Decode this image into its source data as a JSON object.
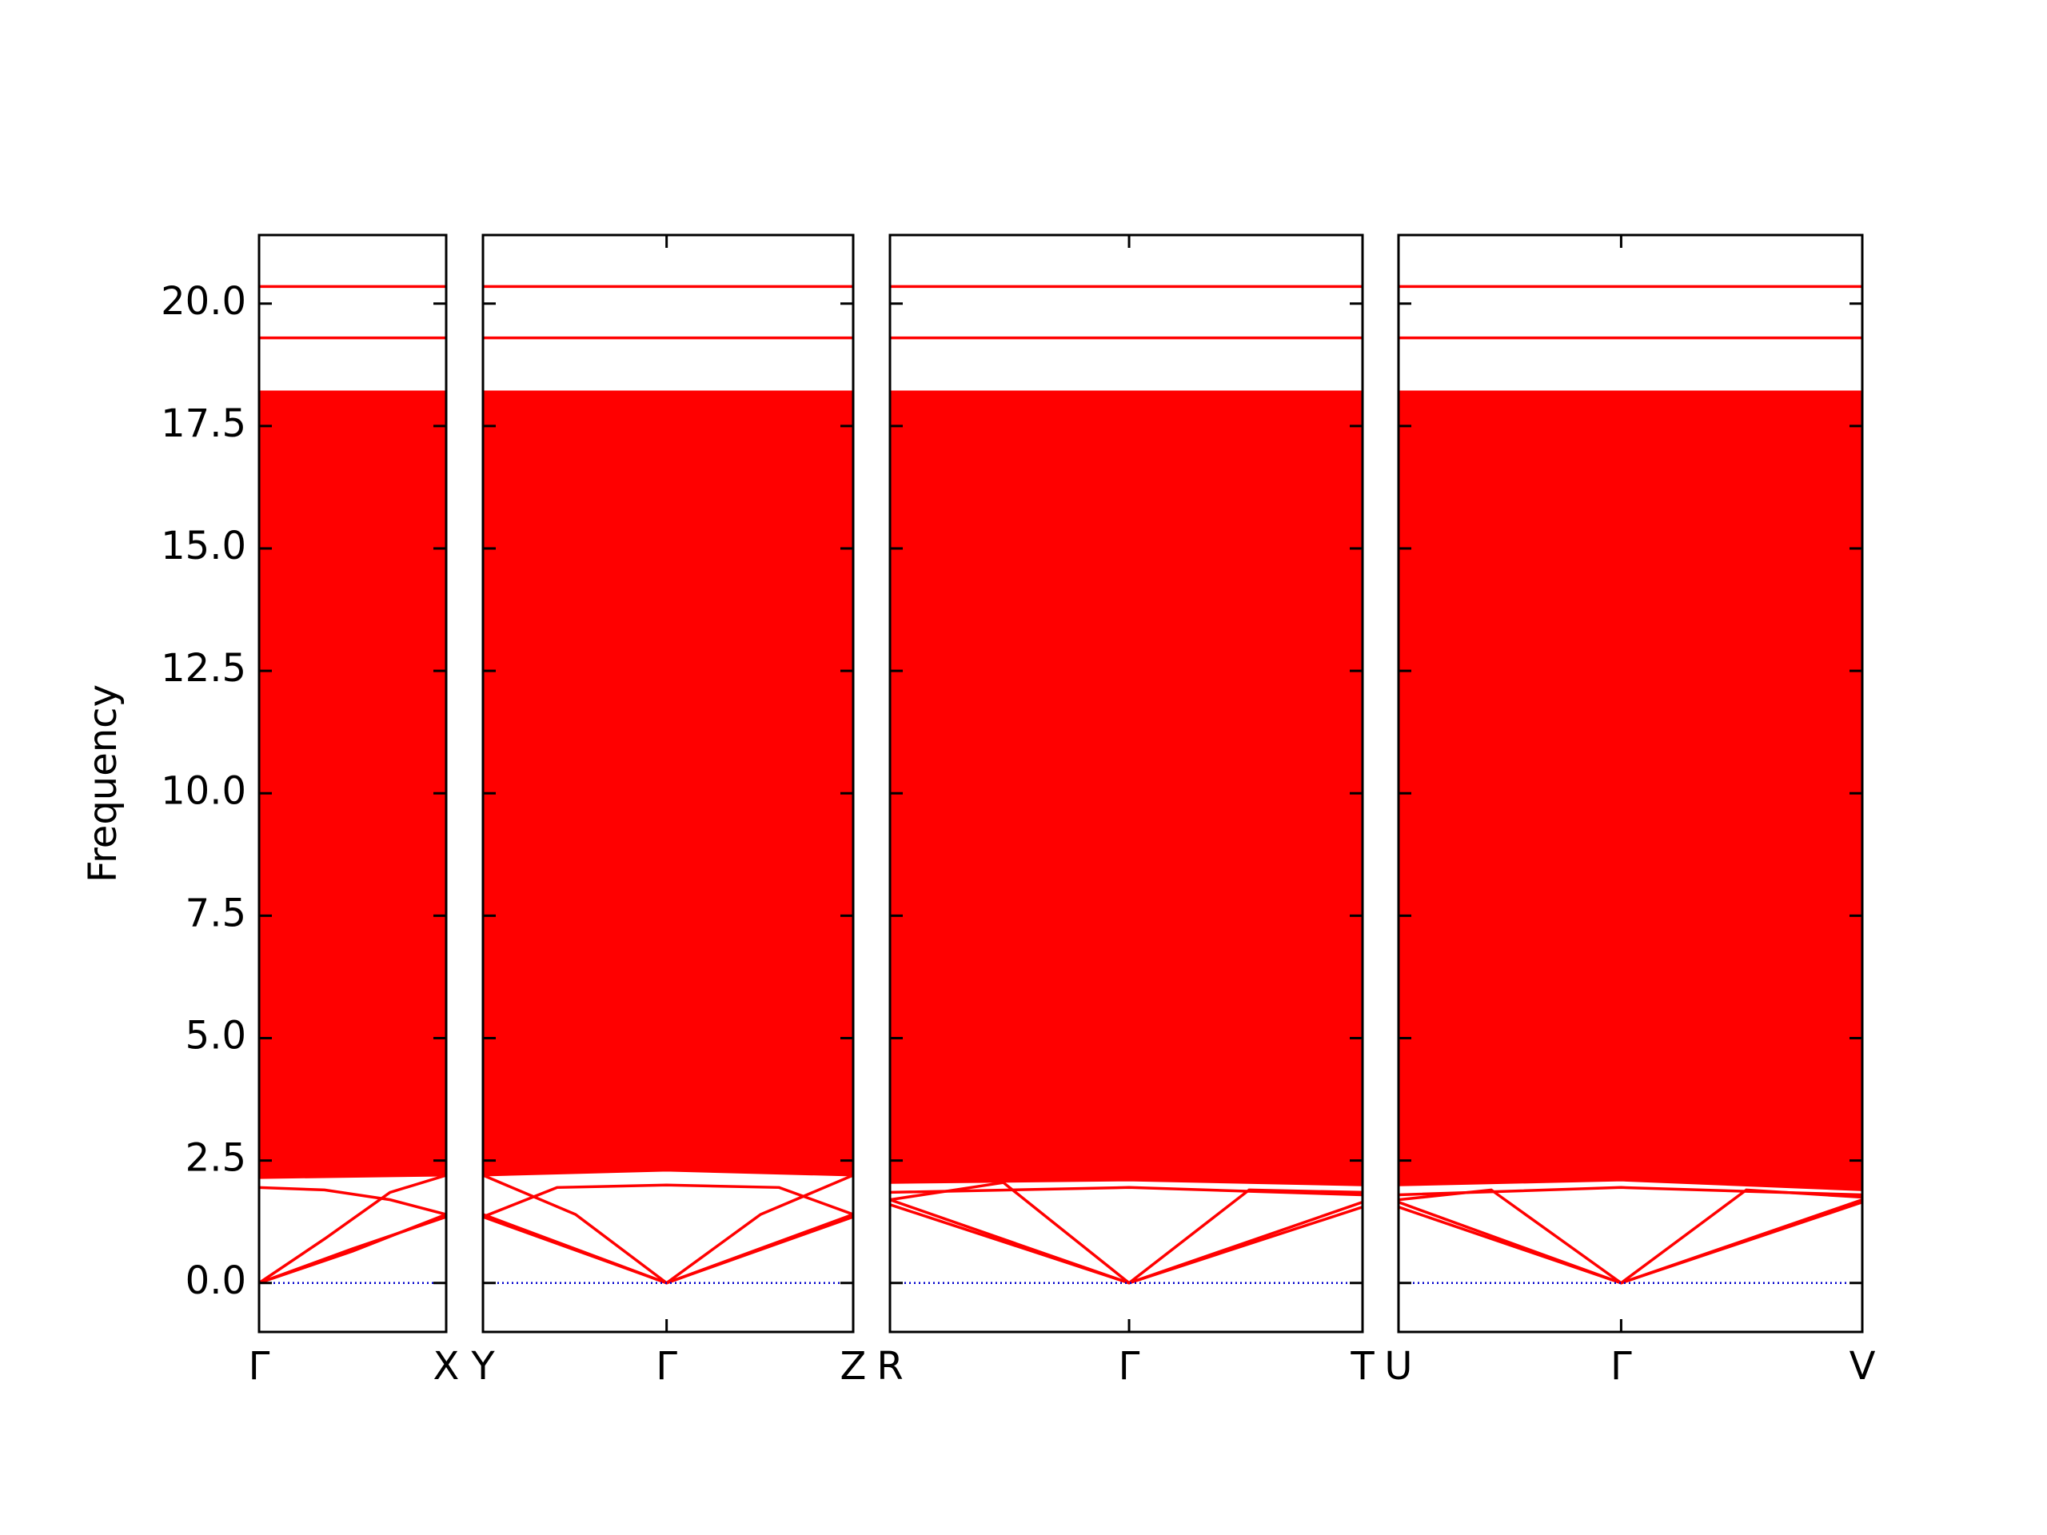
{
  "chart_data": {
    "type": "line",
    "ylabel": "Frequency",
    "ylim": [
      -1.0,
      21.4
    ],
    "yticks": [
      {
        "value": 0,
        "label": "0.0"
      },
      2.5,
      {
        "value": 5,
        "label": "5.0"
      },
      7.5,
      {
        "value": 10,
        "label": "10.0"
      },
      12.5,
      {
        "value": 15,
        "label": "15.0"
      },
      17.5,
      {
        "value": 20,
        "label": "20.0"
      }
    ],
    "color": "#ff0000",
    "zero_line": {
      "value": 0,
      "color": "#0000cc"
    },
    "panels": [
      {
        "xlim": [
          0,
          1
        ],
        "xticks": [
          {
            "value": 0,
            "label": "Γ"
          },
          {
            "value": 1,
            "label": "X"
          }
        ],
        "fill": {
          "x": [
            0,
            1
          ],
          "lower": [
            2.15,
            2.2
          ],
          "upper": [
            18.2,
            18.2
          ]
        },
        "series": [
          {
            "x": [
              0,
              0.5,
              1
            ],
            "values": [
              0,
              0.7,
              1.35
            ]
          },
          {
            "x": [
              0,
              0.5,
              1
            ],
            "values": [
              0,
              0.65,
              1.4
            ]
          },
          {
            "x": [
              0,
              0.35,
              0.7,
              1
            ],
            "values": [
              0,
              0.9,
              1.85,
              2.2
            ]
          },
          {
            "x": [
              0,
              0.35,
              0.7,
              1
            ],
            "values": [
              1.95,
              1.9,
              1.7,
              1.4
            ]
          },
          {
            "x": [
              0,
              1
            ],
            "values": [
              19.3,
              19.3
            ]
          },
          {
            "x": [
              0,
              1
            ],
            "values": [
              20.35,
              20.35
            ]
          }
        ]
      },
      {
        "xlim": [
          0,
          1
        ],
        "xticks": [
          {
            "value": 0,
            "label": "Y"
          },
          {
            "value": 0.496,
            "label": "Γ"
          },
          {
            "value": 1,
            "label": "Z"
          }
        ],
        "fill": {
          "x": [
            0,
            0.496,
            1
          ],
          "lower": [
            2.2,
            2.3,
            2.2
          ],
          "upper": [
            18.2,
            18.2,
            18.2
          ]
        },
        "series": [
          {
            "x": [
              0,
              0.496,
              1
            ],
            "values": [
              1.35,
              0,
              1.35
            ]
          },
          {
            "x": [
              0,
              0.496,
              1
            ],
            "values": [
              1.4,
              0,
              1.4
            ]
          },
          {
            "x": [
              0,
              0.2,
              0.496,
              0.8,
              1
            ],
            "values": [
              1.35,
              1.95,
              2.0,
              1.95,
              1.4
            ]
          },
          {
            "x": [
              0.496,
              0.75,
              1
            ],
            "values": [
              0,
              1.4,
              2.2
            ]
          },
          {
            "x": [
              0,
              0.25,
              0.496
            ],
            "values": [
              2.2,
              1.4,
              0
            ]
          },
          {
            "x": [
              0,
              1
            ],
            "values": [
              19.3,
              19.3
            ]
          },
          {
            "x": [
              0,
              1
            ],
            "values": [
              20.35,
              20.35
            ]
          }
        ]
      },
      {
        "xlim": [
          0,
          1
        ],
        "xticks": [
          {
            "value": 0,
            "label": "R"
          },
          {
            "value": 0.506,
            "label": "Γ"
          },
          {
            "value": 1,
            "label": "T"
          }
        ],
        "fill": {
          "x": [
            0,
            0.506,
            1
          ],
          "lower": [
            2.05,
            2.1,
            2.0
          ],
          "upper": [
            18.2,
            18.2,
            18.2
          ]
        },
        "series": [
          {
            "x": [
              0,
              0.506,
              1
            ],
            "values": [
              1.6,
              0,
              1.55
            ]
          },
          {
            "x": [
              0,
              0.506,
              1
            ],
            "values": [
              1.7,
              0,
              1.65
            ]
          },
          {
            "x": [
              0,
              0.24,
              0.506
            ],
            "values": [
              1.7,
              2.05,
              0
            ]
          },
          {
            "x": [
              0.506,
              0.76,
              1
            ],
            "values": [
              0,
              1.9,
              1.85
            ]
          },
          {
            "x": [
              0,
              0.506,
              1
            ],
            "values": [
              1.85,
              1.95,
              1.8
            ]
          },
          {
            "x": [
              0,
              1
            ],
            "values": [
              19.3,
              19.3
            ]
          },
          {
            "x": [
              0,
              1
            ],
            "values": [
              20.35,
              20.35
            ]
          }
        ]
      },
      {
        "xlim": [
          0,
          1
        ],
        "xticks": [
          {
            "value": 0,
            "label": "U"
          },
          {
            "value": 0.48,
            "label": "Γ"
          },
          {
            "value": 1,
            "label": "V"
          }
        ],
        "fill": {
          "x": [
            0,
            0.48,
            1
          ],
          "lower": [
            2.0,
            2.1,
            1.9
          ],
          "upper": [
            18.2,
            18.2,
            18.2
          ]
        },
        "series": [
          {
            "x": [
              0,
              0.48,
              1
            ],
            "values": [
              1.55,
              0,
              1.7
            ]
          },
          {
            "x": [
              0,
              0.48,
              1
            ],
            "values": [
              1.65,
              0,
              1.65
            ]
          },
          {
            "x": [
              0,
              0.2,
              0.48
            ],
            "values": [
              1.7,
              1.9,
              0
            ]
          },
          {
            "x": [
              0.48,
              0.75,
              1
            ],
            "values": [
              0,
              1.9,
              1.75
            ]
          },
          {
            "x": [
              0,
              0.48,
              1
            ],
            "values": [
              1.8,
              1.95,
              1.8
            ]
          },
          {
            "x": [
              0,
              1
            ],
            "values": [
              19.3,
              19.3
            ]
          },
          {
            "x": [
              0,
              1
            ],
            "values": [
              20.35,
              20.35
            ]
          }
        ]
      }
    ]
  }
}
